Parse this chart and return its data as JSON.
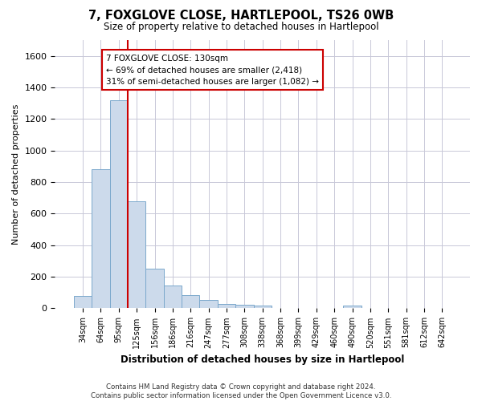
{
  "title": "7, FOXGLOVE CLOSE, HARTLEPOOL, TS26 0WB",
  "subtitle": "Size of property relative to detached houses in Hartlepool",
  "xlabel": "Distribution of detached houses by size in Hartlepool",
  "ylabel": "Number of detached properties",
  "footer": "Contains HM Land Registry data © Crown copyright and database right 2024.\nContains public sector information licensed under the Open Government Licence v3.0.",
  "categories": [
    "34sqm",
    "64sqm",
    "95sqm",
    "125sqm",
    "156sqm",
    "186sqm",
    "216sqm",
    "247sqm",
    "277sqm",
    "308sqm",
    "338sqm",
    "368sqm",
    "399sqm",
    "429sqm",
    "460sqm",
    "490sqm",
    "520sqm",
    "551sqm",
    "581sqm",
    "612sqm",
    "642sqm"
  ],
  "values": [
    80,
    880,
    1320,
    680,
    250,
    145,
    85,
    55,
    30,
    25,
    15,
    0,
    0,
    0,
    0,
    20,
    0,
    0,
    0,
    0,
    0
  ],
  "bar_color": "#ccdaeb",
  "bar_edge_color": "#7ba8cc",
  "vline_color": "#cc0000",
  "annotation_text": "7 FOXGLOVE CLOSE: 130sqm\n← 69% of detached houses are smaller (2,418)\n31% of semi-detached houses are larger (1,082) →",
  "annotation_box_color": "#ffffff",
  "annotation_box_edge_color": "#cc0000",
  "ylim": [
    0,
    1700
  ],
  "yticks": [
    0,
    200,
    400,
    600,
    800,
    1000,
    1200,
    1400,
    1600
  ],
  "bg_color": "#ffffff",
  "grid_color": "#c8c8d8"
}
